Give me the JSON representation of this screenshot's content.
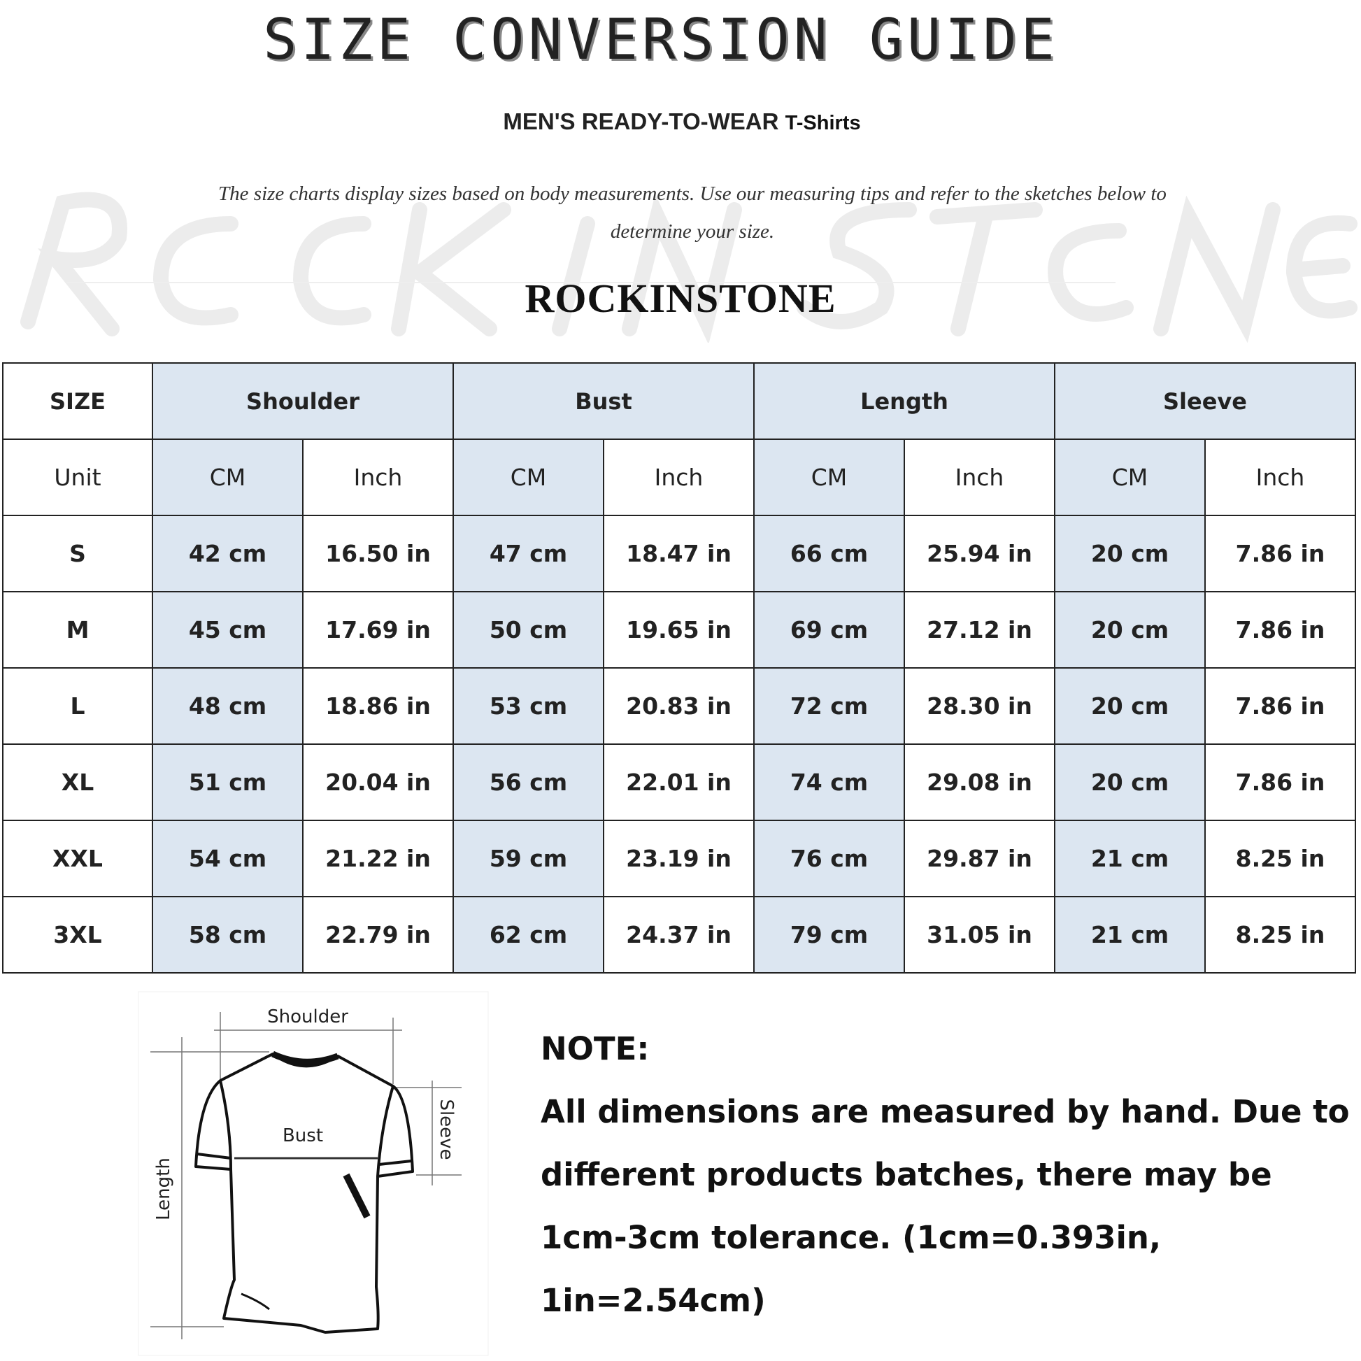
{
  "title": "SIZE CONVERSION GUIDE",
  "subtitle": {
    "main": "MEN'S READY-TO-WEAR",
    "product": "T-Shirts"
  },
  "description": "The size charts display sizes based on body measurements. Use our measuring tips and refer to the sketches below to determine your size.",
  "watermark": "ROCKINSTONE",
  "brand": "ROCKINSTONE",
  "colors": {
    "header_fill": "#dce6f1",
    "border": "#222222"
  },
  "table": {
    "size_label": "SIZE",
    "unit_label": "Unit",
    "groups": [
      "Shoulder",
      "Bust",
      "Length",
      "Sleeve"
    ],
    "units": [
      "CM",
      "Inch"
    ],
    "rows": [
      {
        "size": "S",
        "values": [
          "42 cm",
          "16.50 in",
          "47 cm",
          "18.47  in",
          "66 cm",
          "25.94  in",
          "20 cm",
          "7.86  in"
        ]
      },
      {
        "size": "M",
        "values": [
          "45 cm",
          "17.69  in",
          "50 cm",
          "19.65  in",
          "69 cm",
          "27.12  in",
          "20 cm",
          "7.86  in"
        ]
      },
      {
        "size": "L",
        "values": [
          "48 cm",
          "18.86  in",
          "53 cm",
          "20.83  in",
          "72 cm",
          "28.30  in",
          "20 cm",
          "7.86  in"
        ]
      },
      {
        "size": "XL",
        "values": [
          "51 cm",
          "20.04  in",
          "56 cm",
          "22.01  in",
          "74 cm",
          "29.08  in",
          "20 cm",
          "7.86  in"
        ]
      },
      {
        "size": "XXL",
        "values": [
          "54 cm",
          "21.22  in",
          "59 cm",
          "23.19  in",
          "76 cm",
          "29.87  in",
          "21 cm",
          "8.25  in"
        ]
      },
      {
        "size": "3XL",
        "values": [
          "58 cm",
          "22.79  in",
          "62 cm",
          "24.37  in",
          "79 cm",
          "31.05  in",
          "21 cm",
          "8.25  in"
        ]
      }
    ]
  },
  "sketch": {
    "shoulder": "Shoulder",
    "bust": "Bust",
    "length": "Length",
    "sleeve": "Sleeve"
  },
  "note": {
    "heading": "NOTE:",
    "body": "All dimensions are measured by hand. Due to different products batches, there may be 1cm-3cm tolerance. (1cm=0.393in, 1in=2.54cm)"
  }
}
